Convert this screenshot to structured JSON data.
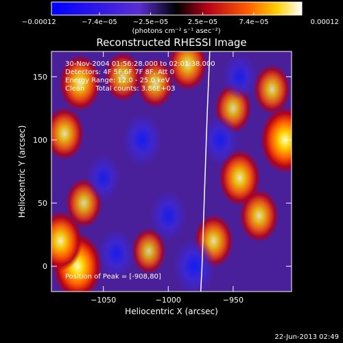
{
  "chart_data": {
    "type": "heatmap",
    "title": "Reconstructed RHESSI Image",
    "xlabel": "Heliocentric X (arcsec)",
    "ylabel": "Heliocentric Y (arcsec)",
    "xlim": [
      -1090,
      -905
    ],
    "ylim": [
      -20,
      170
    ],
    "x_ticks": [
      -1050,
      -1000,
      -950
    ],
    "x_tick_labels": [
      "−1050",
      "−1000",
      "−950"
    ],
    "y_ticks": [
      0,
      50,
      100,
      150
    ],
    "y_tick_labels": [
      "0",
      "50",
      "100",
      "150"
    ],
    "colorbar": {
      "range": [
        -0.00012,
        0.00012
      ],
      "ticks": [
        -0.00012,
        -7.4e-05,
        -2.5e-05,
        2.5e-05,
        7.4e-05,
        0.00012
      ],
      "tick_labels": [
        "−0.00012",
        "−7.4e−05",
        "−2.5e−05",
        "2.5e−05",
        "7.4e−05",
        "0.00012"
      ],
      "unit_label": "(photons cm⁻² s⁻¹ asec⁻²)"
    },
    "annotations": {
      "time_range": "30-Nov-2004 01:56:28.000 to 02:01:38.000",
      "detectors": "Detectors: 4F 5F 6F 7F 8F, Att 0",
      "energy": "Energy Range: 12.0 - 25.0 keV",
      "method_counts": "Clean     Total counts: 3.86E+03",
      "peak": "Position of Peak = [-908,80]"
    },
    "limb_curve": [
      [
        -968,
        170
      ],
      [
        -970,
        120
      ],
      [
        -972,
        60
      ],
      [
        -974,
        0
      ],
      [
        -975,
        -20
      ]
    ],
    "blobs": [
      {
        "x": -1070,
        "y": 0,
        "value": 0.00012
      },
      {
        "x": -1083,
        "y": 20,
        "value": 0.0001
      },
      {
        "x": -1065,
        "y": 50,
        "value": 7e-05
      },
      {
        "x": -1080,
        "y": 105,
        "value": 8e-05
      },
      {
        "x": -1068,
        "y": 145,
        "value": 9e-05
      },
      {
        "x": -1035,
        "y": 150,
        "value": 7e-05
      },
      {
        "x": -1015,
        "y": 12,
        "value": 6e-05
      },
      {
        "x": -1010,
        "y": 145,
        "value": 7e-05
      },
      {
        "x": -985,
        "y": 160,
        "value": 8e-05
      },
      {
        "x": -965,
        "y": 20,
        "value": 8e-05
      },
      {
        "x": -950,
        "y": 125,
        "value": 7e-05
      },
      {
        "x": -945,
        "y": 70,
        "value": 9e-05
      },
      {
        "x": -930,
        "y": 40,
        "value": 8e-05
      },
      {
        "x": -910,
        "y": 100,
        "value": 0.00012
      },
      {
        "x": -920,
        "y": 140,
        "value": 7e-05
      },
      {
        "x": -1050,
        "y": 70,
        "value": -6e-05
      },
      {
        "x": -1020,
        "y": 100,
        "value": -8e-05
      },
      {
        "x": -1000,
        "y": 40,
        "value": -7e-05
      },
      {
        "x": -980,
        "y": 0,
        "value": -9e-05
      },
      {
        "x": -1040,
        "y": 10,
        "value": -7e-05
      },
      {
        "x": -945,
        "y": 150,
        "value": -6e-05
      },
      {
        "x": -960,
        "y": 100,
        "value": -7e-05
      }
    ]
  },
  "footer": {
    "date": "22-Jun-2013 02:49"
  }
}
